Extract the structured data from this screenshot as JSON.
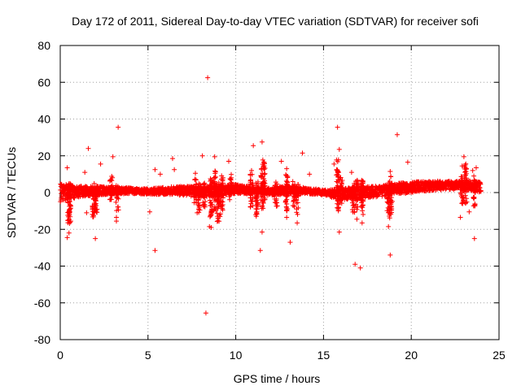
{
  "chart_data": {
    "type": "scatter",
    "title": "Day 172 of 2011, Sidereal Day-to-day VTEC variation (SDTVAR) for receiver sofi",
    "xlabel": "GPS time / hours",
    "ylabel": "SDTVAR / TECUs",
    "xlim": [
      0,
      25
    ],
    "ylim": [
      -80,
      80
    ],
    "xticks": [
      0,
      5,
      10,
      15,
      20,
      25
    ],
    "yticks": [
      -80,
      -60,
      -40,
      -20,
      0,
      20,
      40,
      60,
      80
    ],
    "xtick_labels": [
      "0",
      "5",
      "10",
      "15",
      "20",
      "25"
    ],
    "ytick_labels": [
      "-80",
      "-60",
      "-40",
      "-20",
      "0",
      "20",
      "40",
      "60",
      "80"
    ],
    "grid": true,
    "marker": "+",
    "series": [
      {
        "name": "SDTVAR",
        "color": "#ff0000",
        "baseline_band": {
          "x": [
            0,
            1,
            2,
            3,
            4,
            5,
            6,
            7,
            8,
            9,
            10,
            11,
            12,
            13,
            14,
            15,
            16,
            17,
            18,
            19,
            20,
            21,
            22,
            23,
            24
          ],
          "center": [
            0,
            0.5,
            1,
            1,
            1,
            0.5,
            1,
            1,
            0.5,
            1,
            2,
            1,
            0.5,
            1.5,
            1,
            0,
            -1,
            0,
            0.5,
            2,
            3,
            3.5,
            4,
            4,
            3
          ],
          "half_width": [
            5,
            3,
            2.5,
            2,
            1.5,
            1.5,
            2,
            2.5,
            3,
            3,
            2.5,
            2,
            2,
            2.5,
            1.5,
            1.5,
            3,
            3.5,
            3,
            3,
            3,
            2.5,
            2.5,
            2.5,
            3
          ]
        },
        "points": [
          {
            "x": 8.4,
            "y": 62.5
          },
          {
            "x": 8.3,
            "y": -65.5
          },
          {
            "x": 3.3,
            "y": 35.5
          },
          {
            "x": 15.8,
            "y": 35.5
          },
          {
            "x": 19.2,
            "y": 31.5
          },
          {
            "x": 11.5,
            "y": 27.5
          },
          {
            "x": 11.0,
            "y": 25.5
          },
          {
            "x": 15.9,
            "y": 23.5
          },
          {
            "x": 1.6,
            "y": 24.0
          },
          {
            "x": 13.8,
            "y": 21.5
          },
          {
            "x": 8.1,
            "y": 20.0
          },
          {
            "x": 8.8,
            "y": 19.5
          },
          {
            "x": 3.0,
            "y": 19.5
          },
          {
            "x": 23.0,
            "y": 19.5
          },
          {
            "x": 6.4,
            "y": 18.5
          },
          {
            "x": 12.6,
            "y": 17.0
          },
          {
            "x": 9.6,
            "y": 17.0
          },
          {
            "x": 19.8,
            "y": 16.5
          },
          {
            "x": 2.3,
            "y": 15.5
          },
          {
            "x": 15.6,
            "y": 15.5
          },
          {
            "x": 11.6,
            "y": 16.5
          },
          {
            "x": 22.9,
            "y": 14.5
          },
          {
            "x": 0.4,
            "y": 13.5
          },
          {
            "x": 12.9,
            "y": 13.0
          },
          {
            "x": 6.5,
            "y": 12.5
          },
          {
            "x": 23.5,
            "y": 12.0
          },
          {
            "x": 23.7,
            "y": 13.5
          },
          {
            "x": 5.4,
            "y": 12.5
          },
          {
            "x": 10.9,
            "y": 12.0
          },
          {
            "x": 1.4,
            "y": 11.0
          },
          {
            "x": 16.6,
            "y": 11.0
          },
          {
            "x": 18.8,
            "y": 11.5
          },
          {
            "x": 14.2,
            "y": 10.0
          },
          {
            "x": 7.7,
            "y": 10.5
          },
          {
            "x": 5.7,
            "y": 10.0
          },
          {
            "x": 0.5,
            "y": -22.0
          },
          {
            "x": 0.4,
            "y": -24.5
          },
          {
            "x": 0.6,
            "y": -15.5
          },
          {
            "x": 2.0,
            "y": -25.0
          },
          {
            "x": 1.9,
            "y": -12.5
          },
          {
            "x": 1.5,
            "y": -11.0
          },
          {
            "x": 3.2,
            "y": -13.5
          },
          {
            "x": 3.2,
            "y": -15.5
          },
          {
            "x": 5.4,
            "y": -31.5
          },
          {
            "x": 5.1,
            "y": -10.5
          },
          {
            "x": 8.5,
            "y": -18.5
          },
          {
            "x": 8.6,
            "y": -19.0
          },
          {
            "x": 7.8,
            "y": -11.0
          },
          {
            "x": 9.1,
            "y": -13.0
          },
          {
            "x": 11.4,
            "y": -31.5
          },
          {
            "x": 11.5,
            "y": -21.5
          },
          {
            "x": 11.2,
            "y": -10.5
          },
          {
            "x": 12.9,
            "y": -13.5
          },
          {
            "x": 13.1,
            "y": -27.0
          },
          {
            "x": 13.5,
            "y": -16.5
          },
          {
            "x": 15.9,
            "y": -21.5
          },
          {
            "x": 16.8,
            "y": -39.0
          },
          {
            "x": 17.1,
            "y": -41.0
          },
          {
            "x": 16.9,
            "y": -14.5
          },
          {
            "x": 18.8,
            "y": -34.0
          },
          {
            "x": 18.7,
            "y": -18.5
          },
          {
            "x": 23.6,
            "y": -25.0
          },
          {
            "x": 22.8,
            "y": -13.5
          },
          {
            "x": 23.3,
            "y": -10.5
          },
          {
            "x": 17.2,
            "y": -16.5
          }
        ],
        "spikes": [
          {
            "x": 0.5,
            "ymin": -18,
            "ymax": 6
          },
          {
            "x": 0.55,
            "ymin": -15,
            "ymax": 5
          },
          {
            "x": 1.9,
            "ymin": -14,
            "ymax": 5
          },
          {
            "x": 2.05,
            "ymin": -12,
            "ymax": 4
          },
          {
            "x": 2.9,
            "ymin": -4,
            "ymax": 9
          },
          {
            "x": 3.25,
            "ymin": -10,
            "ymax": 4
          },
          {
            "x": 7.7,
            "ymin": -6,
            "ymax": 8
          },
          {
            "x": 7.9,
            "ymin": -11,
            "ymax": 5
          },
          {
            "x": 8.2,
            "ymin": -9,
            "ymax": 6
          },
          {
            "x": 8.6,
            "ymin": -14,
            "ymax": 8
          },
          {
            "x": 8.8,
            "ymin": -10,
            "ymax": 12
          },
          {
            "x": 9.0,
            "ymin": -16,
            "ymax": 6
          },
          {
            "x": 9.2,
            "ymin": -12,
            "ymax": 10
          },
          {
            "x": 9.7,
            "ymin": -4,
            "ymax": 10
          },
          {
            "x": 10.9,
            "ymin": -8,
            "ymax": 10
          },
          {
            "x": 11.2,
            "ymin": -14,
            "ymax": 6
          },
          {
            "x": 11.5,
            "ymin": -9,
            "ymax": 14
          },
          {
            "x": 11.6,
            "ymin": -4,
            "ymax": 18
          },
          {
            "x": 12.3,
            "ymin": -8,
            "ymax": 6
          },
          {
            "x": 12.9,
            "ymin": -11,
            "ymax": 10
          },
          {
            "x": 13.3,
            "ymin": -8,
            "ymax": 6
          },
          {
            "x": 13.5,
            "ymin": -12,
            "ymax": 5
          },
          {
            "x": 15.8,
            "ymin": -10,
            "ymax": 18
          },
          {
            "x": 16.0,
            "ymin": -6,
            "ymax": 9
          },
          {
            "x": 16.7,
            "ymin": -14,
            "ymax": 5
          },
          {
            "x": 16.9,
            "ymin": -10,
            "ymax": 8
          },
          {
            "x": 17.2,
            "ymin": -12,
            "ymax": 7
          },
          {
            "x": 18.7,
            "ymin": -14,
            "ymax": 7
          },
          {
            "x": 18.85,
            "ymin": -12,
            "ymax": 9
          },
          {
            "x": 22.9,
            "ymin": -9,
            "ymax": 9
          },
          {
            "x": 23.1,
            "ymin": -6,
            "ymax": 16
          },
          {
            "x": 23.6,
            "ymin": -8,
            "ymax": 9
          }
        ]
      }
    ]
  }
}
